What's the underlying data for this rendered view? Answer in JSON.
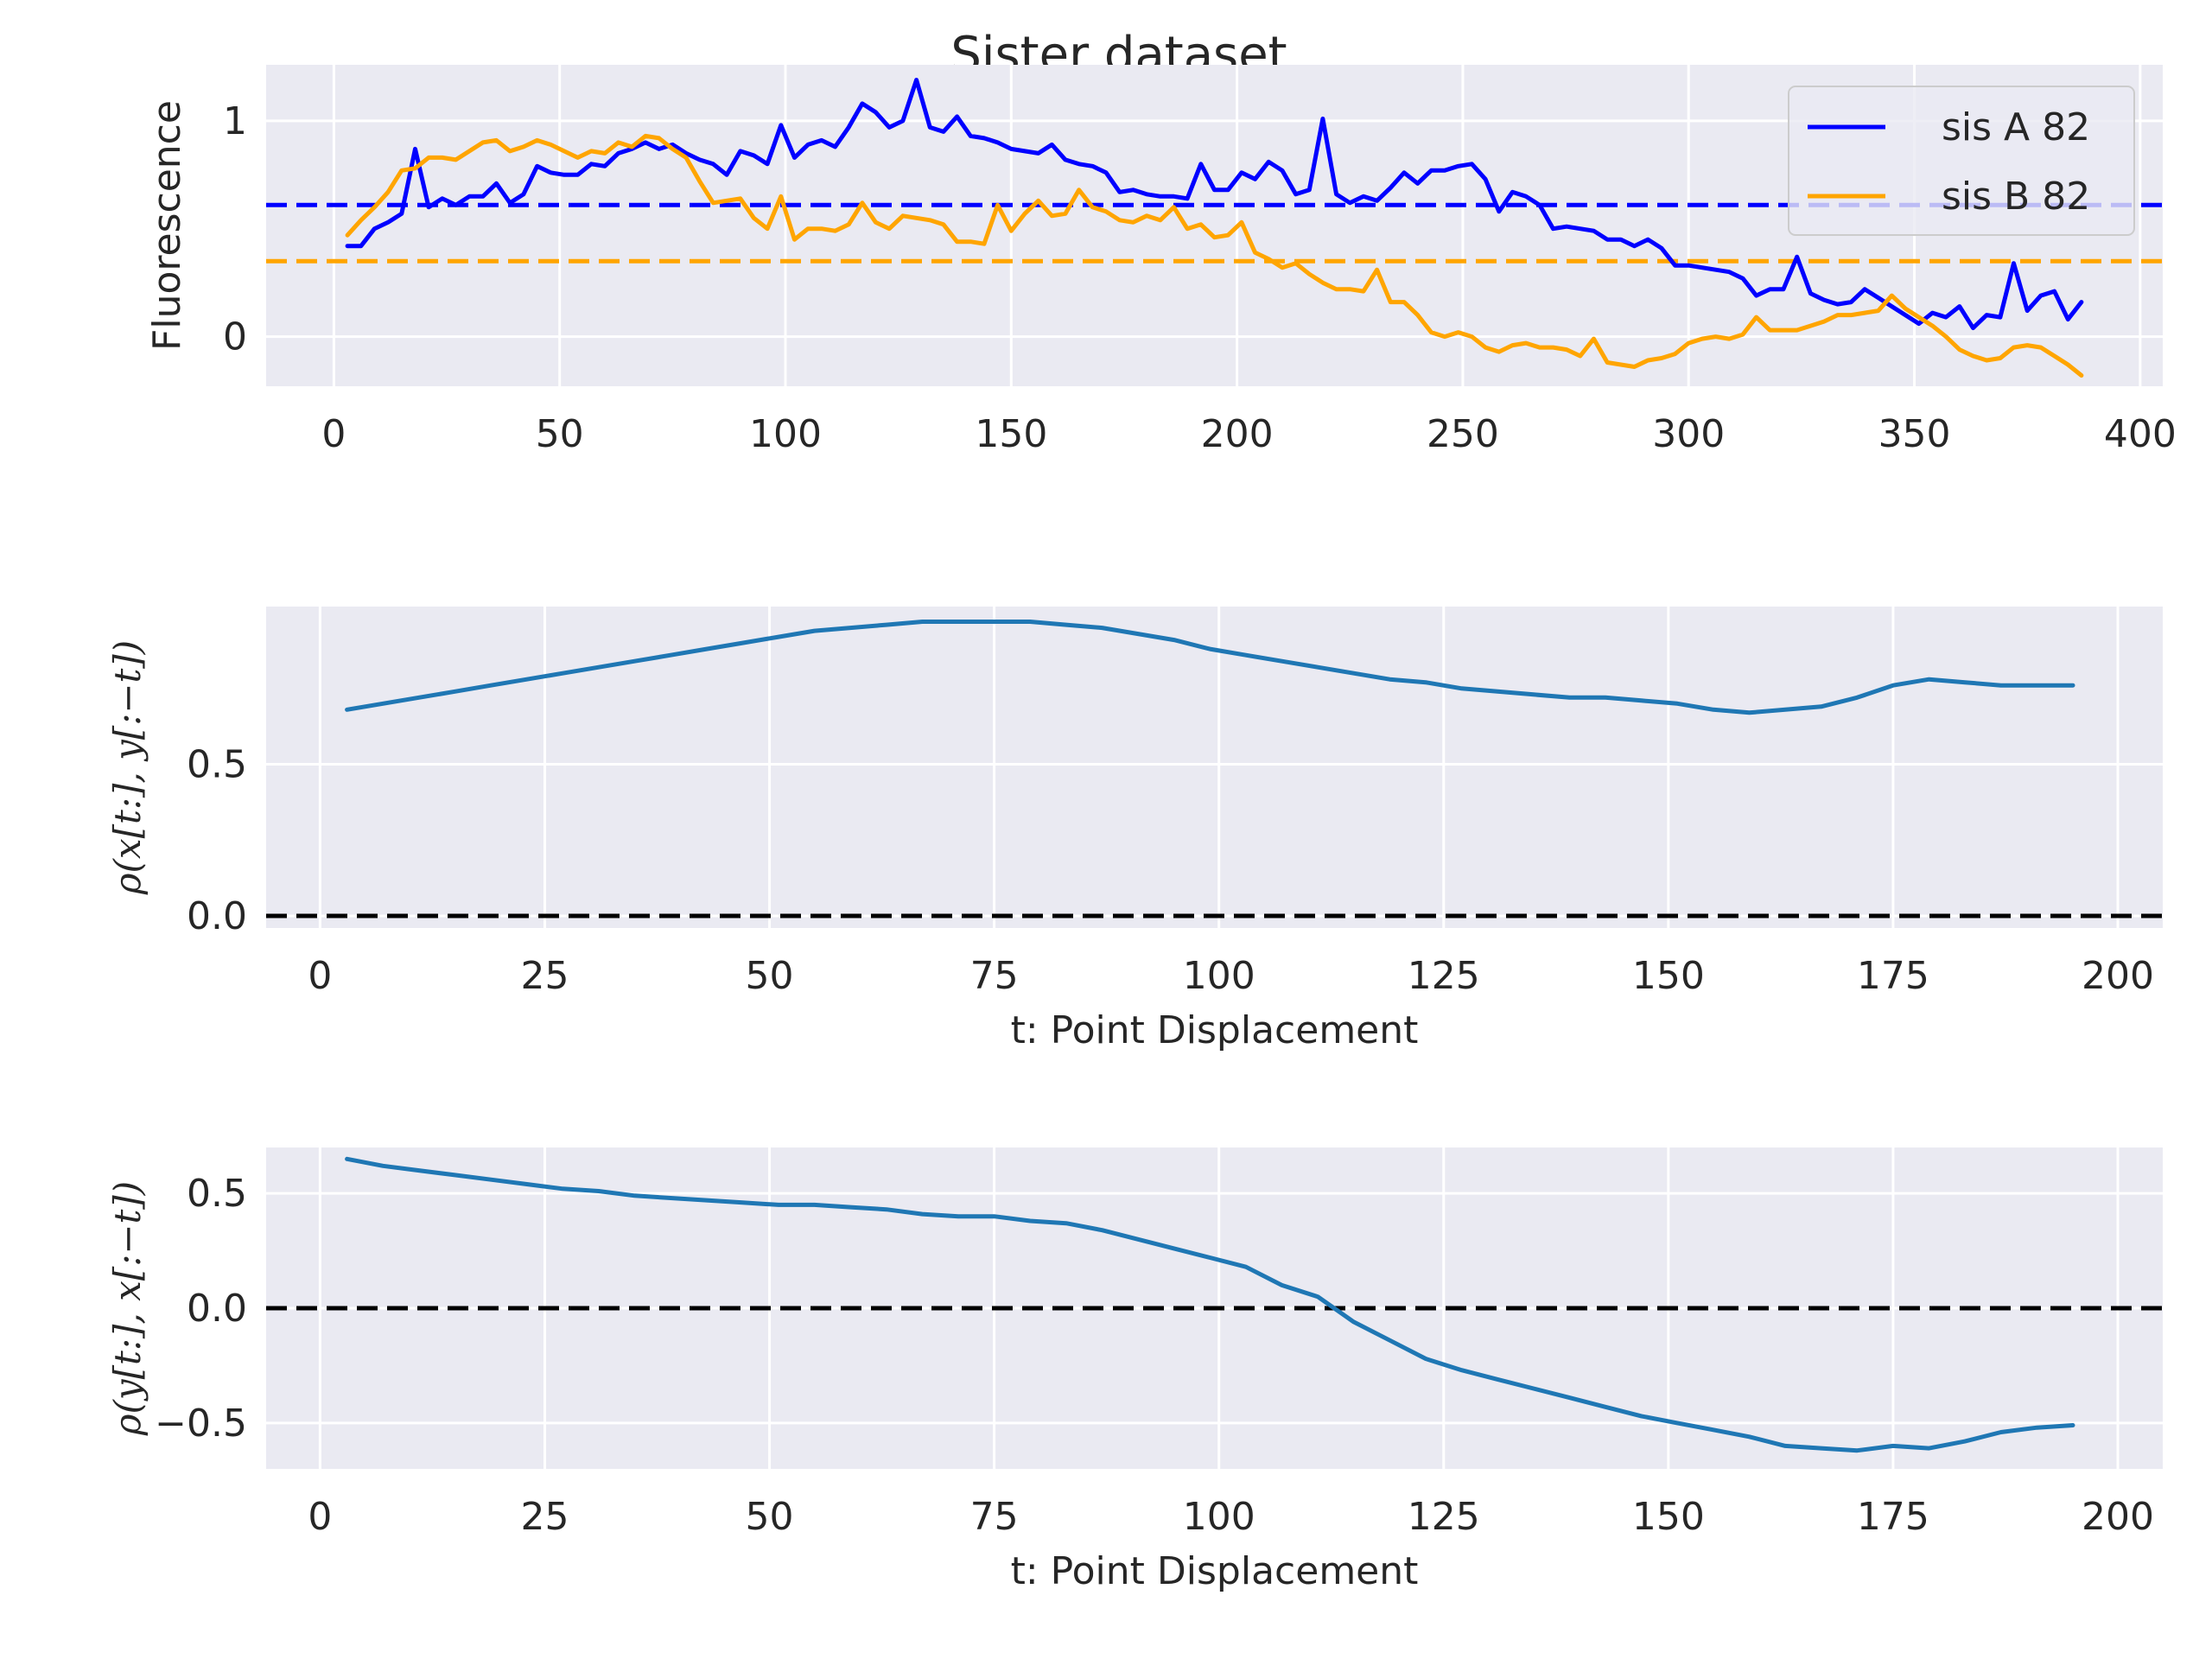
{
  "figure": {
    "title": "Sister dataset"
  },
  "chart_data": [
    {
      "type": "line",
      "title": "",
      "xlabel": "",
      "ylabel": "Fluorescence",
      "xlim": [
        -15,
        405
      ],
      "ylim": [
        -0.23,
        1.26
      ],
      "xticks": [
        0,
        50,
        100,
        150,
        200,
        250,
        300,
        350,
        400
      ],
      "yticks": [
        0,
        1
      ],
      "grid": true,
      "legend": "top-right",
      "series": [
        {
          "name": "sis A 82",
          "color": "#0000ff",
          "x": [
            3,
            6,
            9,
            12,
            15,
            18,
            21,
            24,
            27,
            30,
            33,
            36,
            39,
            42,
            45,
            48,
            51,
            54,
            57,
            60,
            63,
            66,
            69,
            72,
            75,
            78,
            81,
            84,
            87,
            90,
            93,
            96,
            99,
            102,
            105,
            108,
            111,
            114,
            117,
            120,
            123,
            126,
            129,
            132,
            135,
            138,
            141,
            144,
            147,
            150,
            153,
            156,
            159,
            162,
            165,
            168,
            171,
            174,
            177,
            180,
            183,
            186,
            189,
            192,
            195,
            198,
            201,
            204,
            207,
            210,
            213,
            216,
            219,
            222,
            225,
            228,
            231,
            234,
            237,
            240,
            243,
            246,
            249,
            252,
            255,
            258,
            261,
            264,
            267,
            270,
            273,
            276,
            279,
            282,
            285,
            288,
            291,
            294,
            297,
            300,
            303,
            306,
            309,
            312,
            315,
            318,
            321,
            324,
            327,
            330,
            333,
            336,
            339,
            342,
            345,
            348,
            351,
            354,
            357,
            360,
            363,
            366,
            369,
            372,
            375,
            378,
            381,
            384,
            387
          ],
          "y": [
            0.42,
            0.42,
            0.5,
            0.53,
            0.57,
            0.87,
            0.6,
            0.64,
            0.61,
            0.65,
            0.65,
            0.71,
            0.62,
            0.66,
            0.79,
            0.76,
            0.75,
            0.75,
            0.8,
            0.79,
            0.85,
            0.87,
            0.9,
            0.87,
            0.89,
            0.85,
            0.82,
            0.8,
            0.75,
            0.86,
            0.84,
            0.8,
            0.98,
            0.83,
            0.89,
            0.91,
            0.88,
            0.97,
            1.08,
            1.04,
            0.97,
            1.0,
            1.19,
            0.97,
            0.95,
            1.02,
            0.93,
            0.92,
            0.9,
            0.87,
            0.86,
            0.85,
            0.89,
            0.82,
            0.8,
            0.79,
            0.76,
            0.67,
            0.68,
            0.66,
            0.65,
            0.65,
            0.64,
            0.8,
            0.68,
            0.68,
            0.76,
            0.73,
            0.81,
            0.77,
            0.66,
            0.68,
            1.01,
            0.66,
            0.62,
            0.65,
            0.63,
            0.69,
            0.76,
            0.71,
            0.77,
            0.77,
            0.79,
            0.8,
            0.73,
            0.58,
            0.67,
            0.65,
            0.61,
            0.5,
            0.51,
            0.5,
            0.49,
            0.45,
            0.45,
            0.42,
            0.45,
            0.41,
            0.33,
            0.33,
            0.32,
            0.31,
            0.3,
            0.27,
            0.19,
            0.22,
            0.22,
            0.37,
            0.2,
            0.17,
            0.15,
            0.16,
            0.22,
            0.18,
            0.14,
            0.1,
            0.06,
            0.11,
            0.09,
            0.14,
            0.04,
            0.1,
            0.09,
            0.34,
            0.12,
            0.19,
            0.21,
            0.08,
            0.16
          ]
        },
        {
          "name": "sis B 82",
          "color": "#ffa500",
          "x": [
            3,
            6,
            9,
            12,
            15,
            18,
            21,
            24,
            27,
            30,
            33,
            36,
            39,
            42,
            45,
            48,
            51,
            54,
            57,
            60,
            63,
            66,
            69,
            72,
            75,
            78,
            81,
            84,
            87,
            90,
            93,
            96,
            99,
            102,
            105,
            108,
            111,
            114,
            117,
            120,
            123,
            126,
            129,
            132,
            135,
            138,
            141,
            144,
            147,
            150,
            153,
            156,
            159,
            162,
            165,
            168,
            171,
            174,
            177,
            180,
            183,
            186,
            189,
            192,
            195,
            198,
            201,
            204,
            207,
            210,
            213,
            216,
            219,
            222,
            225,
            228,
            231,
            234,
            237,
            240,
            243,
            246,
            249,
            252,
            255,
            258,
            261,
            264,
            267,
            270,
            273,
            276,
            279,
            282,
            285,
            288,
            291,
            294,
            297,
            300,
            303,
            306,
            309,
            312,
            315,
            318,
            321,
            324,
            327,
            330,
            333,
            336,
            339,
            342,
            345,
            348,
            351,
            354,
            357,
            360,
            363,
            366,
            369,
            372,
            375,
            378,
            381,
            384,
            387
          ],
          "y": [
            0.47,
            0.54,
            0.6,
            0.67,
            0.77,
            0.78,
            0.83,
            0.83,
            0.82,
            0.86,
            0.9,
            0.91,
            0.86,
            0.88,
            0.91,
            0.89,
            0.86,
            0.83,
            0.86,
            0.85,
            0.9,
            0.88,
            0.93,
            0.92,
            0.87,
            0.83,
            0.72,
            0.62,
            0.63,
            0.64,
            0.55,
            0.5,
            0.65,
            0.45,
            0.5,
            0.5,
            0.49,
            0.52,
            0.62,
            0.53,
            0.5,
            0.56,
            0.55,
            0.54,
            0.52,
            0.44,
            0.44,
            0.43,
            0.61,
            0.49,
            0.57,
            0.63,
            0.56,
            0.57,
            0.68,
            0.6,
            0.58,
            0.54,
            0.53,
            0.56,
            0.54,
            0.6,
            0.5,
            0.52,
            0.46,
            0.47,
            0.53,
            0.39,
            0.36,
            0.32,
            0.34,
            0.29,
            0.25,
            0.22,
            0.22,
            0.21,
            0.31,
            0.16,
            0.16,
            0.1,
            0.02,
            0.0,
            0.02,
            0.0,
            -0.05,
            -0.07,
            -0.04,
            -0.03,
            -0.05,
            -0.05,
            -0.06,
            -0.09,
            -0.01,
            -0.12,
            -0.13,
            -0.14,
            -0.11,
            -0.1,
            -0.08,
            -0.03,
            -0.01,
            0.0,
            -0.01,
            0.01,
            0.09,
            0.03,
            0.03,
            0.03,
            0.05,
            0.07,
            0.1,
            0.1,
            0.11,
            0.12,
            0.19,
            0.13,
            0.09,
            0.05,
            0.0,
            -0.06,
            -0.09,
            -0.11,
            -0.1,
            -0.05,
            -0.04,
            -0.05,
            -0.09,
            -0.13,
            -0.18
          ]
        }
      ],
      "hlines": [
        {
          "y": 0.61,
          "color": "#0000ff",
          "style": "dashed"
        },
        {
          "y": 0.35,
          "color": "#ffa500",
          "style": "dashed"
        }
      ]
    },
    {
      "type": "line",
      "title": "",
      "xlabel": "t: Point Displacement",
      "ylabel": "ρ(x[t:], y[:−t])",
      "xlim": [
        -6,
        205
      ],
      "ylim": [
        -0.04,
        1.02
      ],
      "xticks": [
        0,
        25,
        50,
        75,
        100,
        125,
        150,
        175,
        200
      ],
      "yticks": [
        0.0,
        0.5
      ],
      "grid": true,
      "series": [
        {
          "color": "#1f77b4",
          "x": [
            3,
            7,
            11,
            15,
            19,
            23,
            27,
            31,
            35,
            39,
            43,
            47,
            51,
            55,
            59,
            63,
            67,
            71,
            75,
            79,
            83,
            87,
            91,
            95,
            99,
            103,
            107,
            111,
            115,
            119,
            123,
            127,
            131,
            135,
            139,
            143,
            147,
            151,
            155,
            159,
            163,
            167,
            171,
            175,
            179,
            183,
            187,
            191,
            195
          ],
          "y": [
            0.68,
            0.7,
            0.72,
            0.74,
            0.76,
            0.78,
            0.8,
            0.82,
            0.84,
            0.86,
            0.88,
            0.9,
            0.92,
            0.94,
            0.95,
            0.96,
            0.97,
            0.97,
            0.97,
            0.97,
            0.96,
            0.95,
            0.93,
            0.91,
            0.88,
            0.86,
            0.84,
            0.82,
            0.8,
            0.78,
            0.77,
            0.75,
            0.74,
            0.73,
            0.72,
            0.72,
            0.71,
            0.7,
            0.68,
            0.67,
            0.68,
            0.69,
            0.72,
            0.76,
            0.78,
            0.77,
            0.76,
            0.76,
            0.76
          ]
        }
      ],
      "hlines": [
        {
          "y": 0.0,
          "color": "#000000",
          "style": "dashed"
        }
      ]
    },
    {
      "type": "line",
      "title": "",
      "xlabel": "t: Point Displacement",
      "ylabel": "ρ(y[t:], x[:−t])",
      "xlim": [
        -6,
        205
      ],
      "ylim": [
        -0.7,
        0.7
      ],
      "xticks": [
        0,
        25,
        50,
        75,
        100,
        125,
        150,
        175,
        200
      ],
      "yticks": [
        -0.5,
        0.0,
        0.5
      ],
      "grid": true,
      "series": [
        {
          "color": "#1f77b4",
          "x": [
            3,
            7,
            11,
            15,
            19,
            23,
            27,
            31,
            35,
            39,
            43,
            47,
            51,
            55,
            59,
            63,
            67,
            71,
            75,
            79,
            83,
            87,
            91,
            95,
            99,
            103,
            107,
            111,
            115,
            119,
            123,
            127,
            131,
            135,
            139,
            143,
            147,
            151,
            155,
            159,
            163,
            167,
            171,
            175,
            179,
            183,
            187,
            191,
            195
          ],
          "y": [
            0.65,
            0.62,
            0.6,
            0.58,
            0.56,
            0.54,
            0.52,
            0.51,
            0.49,
            0.48,
            0.47,
            0.46,
            0.45,
            0.45,
            0.44,
            0.43,
            0.41,
            0.4,
            0.4,
            0.38,
            0.37,
            0.34,
            0.3,
            0.26,
            0.22,
            0.18,
            0.1,
            0.05,
            -0.06,
            -0.14,
            -0.22,
            -0.27,
            -0.31,
            -0.35,
            -0.39,
            -0.43,
            -0.47,
            -0.5,
            -0.53,
            -0.56,
            -0.6,
            -0.61,
            -0.62,
            -0.6,
            -0.61,
            -0.58,
            -0.54,
            -0.52,
            -0.51
          ]
        }
      ],
      "hlines": [
        {
          "y": 0.0,
          "color": "#000000",
          "style": "dashed"
        }
      ]
    }
  ]
}
